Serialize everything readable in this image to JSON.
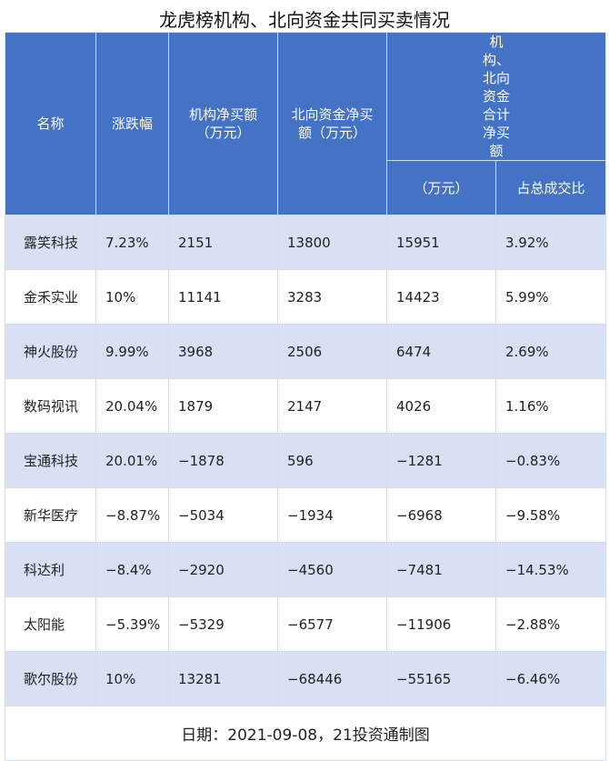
{
  "title": "龙虎榜机构、北向资金共同买卖情况",
  "headers": {
    "name": "名称",
    "change": "涨跌幅",
    "inst": "机构净买额（万元）",
    "north": "北向资金净买额（万元）",
    "combined_group": "机构、北向资金合计净买额",
    "combined": "（万元）",
    "ratio": "占总成交比"
  },
  "footer": "日期：2021-09-08，21投资通制图",
  "chart_data": {
    "type": "table",
    "title": "龙虎榜机构、北向资金共同买卖情况",
    "columns": [
      "名称",
      "涨跌幅",
      "机构净买额（万元）",
      "北向资金净买额（万元）",
      "机构、北向资金合计净买额（万元）",
      "占总成交比"
    ],
    "rows": [
      [
        "露笑科技",
        "7.23%",
        "2151",
        "13800",
        "15951",
        "3.92%"
      ],
      [
        "金禾实业",
        "10%",
        "11141",
        "3283",
        "14423",
        "5.99%"
      ],
      [
        "神火股份",
        "9.99%",
        "3968",
        "2506",
        "6474",
        "2.69%"
      ],
      [
        "数码视讯",
        "20.04%",
        "1879",
        "2147",
        "4026",
        "1.16%"
      ],
      [
        "宝通科技",
        "20.01%",
        "−1878",
        "596",
        "−1281",
        "−0.83%"
      ],
      [
        "新华医疗",
        "−8.87%",
        "−5034",
        "−1934",
        "−6968",
        "−9.58%"
      ],
      [
        "科达利",
        "−8.4%",
        "−2920",
        "−4560",
        "−7481",
        "−14.53%"
      ],
      [
        "太阳能",
        "−5.39%",
        "−5329",
        "−6577",
        "−11906",
        "−2.88%"
      ],
      [
        "歌尔股份",
        "10%",
        "13281",
        "−68446",
        "−55165",
        "−6.46%"
      ]
    ]
  },
  "colors": {
    "header": "#4472c4",
    "row_alt": "#dae0f3"
  }
}
